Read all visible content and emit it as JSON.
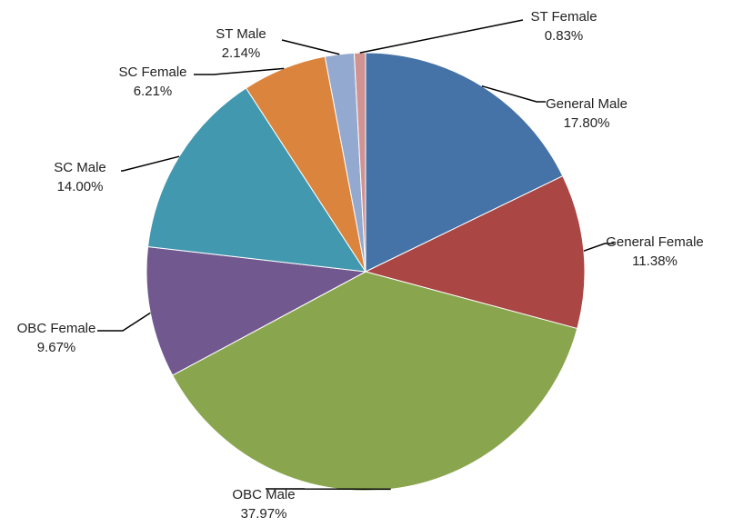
{
  "chart_data": {
    "type": "pie",
    "categories": [
      "General Male",
      "General Female",
      "OBC Male",
      "OBC Female",
      "SC Male",
      "SC Female",
      "ST Male",
      "ST Female"
    ],
    "values": [
      17.8,
      11.38,
      37.97,
      9.67,
      14.0,
      6.21,
      2.14,
      0.83
    ],
    "value_labels": [
      "17.80%",
      "11.38%",
      "37.97%",
      "9.67%",
      "14.00%",
      "6.21%",
      "2.14%",
      "0.83%"
    ],
    "colors": [
      "#4572a7",
      "#aa4643",
      "#89a54e",
      "#71588f",
      "#4198af",
      "#db843d",
      "#93a9cf",
      "#d19392"
    ]
  }
}
